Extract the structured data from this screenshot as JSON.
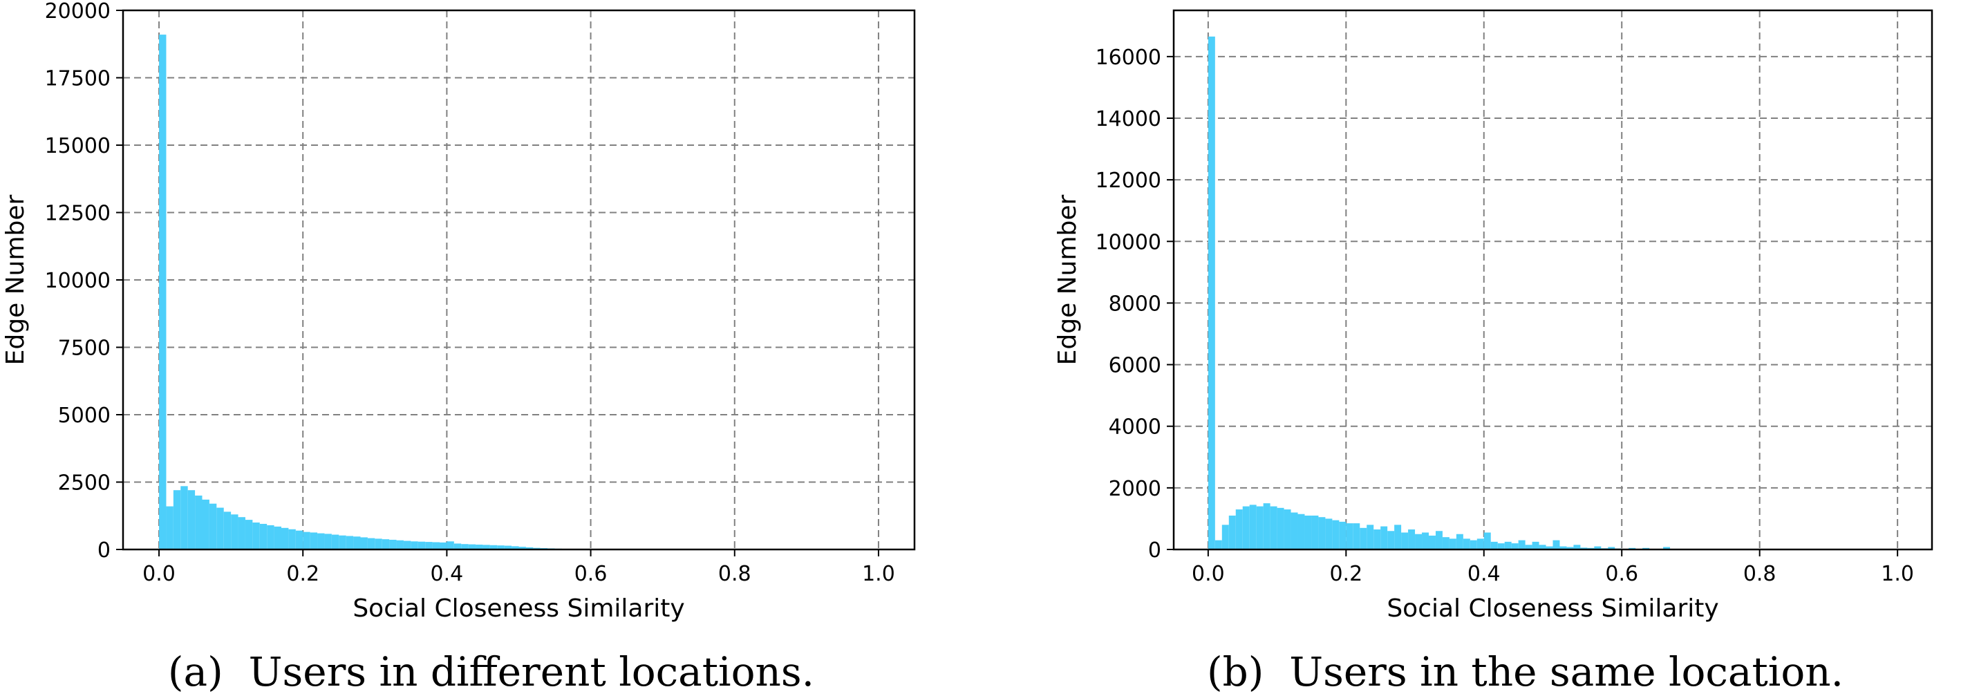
{
  "chart_data": [
    {
      "type": "bar",
      "caption": "(a)  Users in different locations.",
      "xlabel": "Social Closeness Similarity",
      "ylabel": "Edge Number",
      "xlim": [
        -0.05,
        1.05
      ],
      "ylim": [
        0,
        20000
      ],
      "xticks": [
        0.0,
        0.2,
        0.4,
        0.6,
        0.8,
        1.0
      ],
      "xtick_labels": [
        "0.0",
        "0.2",
        "0.4",
        "0.6",
        "0.8",
        "1.0"
      ],
      "yticks": [
        0,
        2500,
        5000,
        7500,
        10000,
        12500,
        15000,
        17500,
        20000
      ],
      "ytick_labels": [
        "0",
        "2500",
        "5000",
        "7500",
        "10000",
        "12500",
        "15000",
        "17500",
        "20000"
      ],
      "grid": true,
      "bin_width": 0.01,
      "bin_start": 0.0,
      "values": [
        19100,
        1600,
        2200,
        2350,
        2200,
        2000,
        1850,
        1700,
        1550,
        1400,
        1300,
        1200,
        1100,
        1000,
        950,
        900,
        850,
        800,
        750,
        700,
        650,
        630,
        600,
        580,
        550,
        520,
        500,
        480,
        450,
        420,
        400,
        380,
        360,
        340,
        320,
        300,
        290,
        280,
        270,
        260,
        300,
        220,
        200,
        190,
        180,
        170,
        160,
        150,
        140,
        120,
        100,
        80,
        60,
        50,
        40,
        30,
        20,
        15,
        10,
        8,
        5
      ]
    },
    {
      "type": "bar",
      "caption": "(b)  Users in the same location.",
      "xlabel": "Social Closeness Similarity",
      "ylabel": "Edge Number",
      "xlim": [
        -0.05,
        1.05
      ],
      "ylim": [
        0,
        17500
      ],
      "xticks": [
        0.0,
        0.2,
        0.4,
        0.6,
        0.8,
        1.0
      ],
      "xtick_labels": [
        "0.0",
        "0.2",
        "0.4",
        "0.6",
        "0.8",
        "1.0"
      ],
      "yticks": [
        0,
        2000,
        4000,
        6000,
        8000,
        10000,
        12000,
        14000,
        16000
      ],
      "ytick_labels": [
        "0",
        "2000",
        "4000",
        "6000",
        "8000",
        "10000",
        "12000",
        "14000",
        "16000"
      ],
      "grid": true,
      "bin_width": 0.01,
      "bin_start": 0.0,
      "values": [
        16650,
        300,
        800,
        1100,
        1300,
        1400,
        1450,
        1400,
        1500,
        1400,
        1350,
        1300,
        1200,
        1150,
        1100,
        1100,
        1050,
        1000,
        950,
        900,
        850,
        850,
        700,
        800,
        650,
        750,
        600,
        800,
        550,
        650,
        500,
        550,
        450,
        600,
        400,
        350,
        500,
        350,
        300,
        350,
        550,
        250,
        200,
        250,
        200,
        300,
        150,
        250,
        150,
        100,
        300,
        100,
        80,
        150,
        60,
        50,
        100,
        40,
        80,
        30,
        20,
        50,
        20,
        50,
        10,
        15,
        80,
        20,
        10,
        10,
        5,
        5,
        5,
        20,
        5
      ]
    }
  ],
  "colors": {
    "bar": "#4dcffa"
  }
}
